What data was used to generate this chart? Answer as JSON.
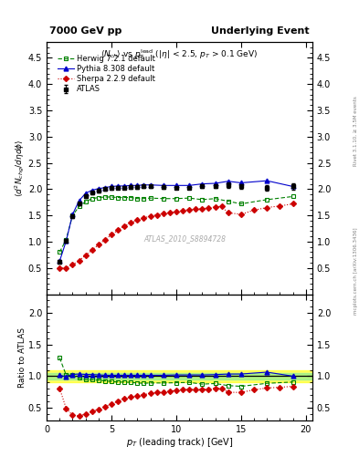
{
  "title_left": "7000 GeV pp",
  "title_right": "Underlying Event",
  "ylabel_main": "$\\langle d^2 N_{chg}/d\\eta d\\phi \\rangle$",
  "ylabel_ratio": "Ratio to ATLAS",
  "xlabel": "$p_T$ (leading track) [GeV]",
  "watermark": "ATLAS_2010_S8894728",
  "right_label": "mcplots.cern.ch [arXiv:1306.3436]",
  "rivet_label": "Rivet 3.1.10, ≥ 3.5M events",
  "atlas_x": [
    1.0,
    1.5,
    2.0,
    2.5,
    3.0,
    3.5,
    4.0,
    4.5,
    5.0,
    5.5,
    6.0,
    6.5,
    7.0,
    7.5,
    8.0,
    9.0,
    10.0,
    11.0,
    12.0,
    13.0,
    14.0,
    15.0,
    17.0,
    19.0
  ],
  "atlas_y": [
    0.62,
    1.02,
    1.48,
    1.72,
    1.87,
    1.93,
    1.97,
    2.0,
    2.02,
    2.03,
    2.03,
    2.04,
    2.04,
    2.05,
    2.05,
    2.04,
    2.03,
    2.03,
    2.06,
    2.06,
    2.08,
    2.05,
    2.03,
    2.05
  ],
  "atlas_yerr": [
    0.03,
    0.03,
    0.03,
    0.03,
    0.03,
    0.03,
    0.03,
    0.03,
    0.03,
    0.03,
    0.03,
    0.03,
    0.03,
    0.03,
    0.03,
    0.03,
    0.03,
    0.03,
    0.04,
    0.04,
    0.05,
    0.05,
    0.05,
    0.06
  ],
  "herwig_x": [
    1.0,
    1.5,
    2.0,
    2.5,
    3.0,
    3.5,
    4.0,
    4.5,
    5.0,
    5.5,
    6.0,
    6.5,
    7.0,
    7.5,
    8.0,
    9.0,
    10.0,
    11.0,
    12.0,
    13.0,
    14.0,
    15.0,
    17.0,
    19.0
  ],
  "herwig_y": [
    0.8,
    1.04,
    1.5,
    1.67,
    1.76,
    1.82,
    1.84,
    1.85,
    1.85,
    1.84,
    1.84,
    1.84,
    1.82,
    1.82,
    1.83,
    1.82,
    1.82,
    1.83,
    1.8,
    1.82,
    1.77,
    1.72,
    1.8,
    1.86
  ],
  "pythia_x": [
    1.0,
    1.5,
    2.0,
    2.5,
    3.0,
    3.5,
    4.0,
    4.5,
    5.0,
    5.5,
    6.0,
    6.5,
    7.0,
    7.5,
    8.0,
    9.0,
    10.0,
    11.0,
    12.0,
    13.0,
    14.0,
    15.0,
    17.0,
    19.0
  ],
  "pythia_y": [
    0.63,
    1.01,
    1.52,
    1.78,
    1.92,
    1.98,
    2.01,
    2.03,
    2.05,
    2.06,
    2.06,
    2.07,
    2.07,
    2.08,
    2.08,
    2.07,
    2.07,
    2.07,
    2.1,
    2.11,
    2.15,
    2.12,
    2.16,
    2.05
  ],
  "sherpa_x": [
    1.0,
    1.5,
    2.0,
    2.5,
    3.0,
    3.5,
    4.0,
    4.5,
    5.0,
    5.5,
    6.0,
    6.5,
    7.0,
    7.5,
    8.0,
    8.5,
    9.0,
    9.5,
    10.0,
    10.5,
    11.0,
    11.5,
    12.0,
    12.5,
    13.0,
    13.5,
    14.0,
    15.0,
    16.0,
    17.0,
    18.0,
    19.0
  ],
  "sherpa_y": [
    0.5,
    0.5,
    0.56,
    0.64,
    0.74,
    0.84,
    0.94,
    1.04,
    1.13,
    1.22,
    1.3,
    1.36,
    1.41,
    1.45,
    1.49,
    1.51,
    1.53,
    1.55,
    1.57,
    1.59,
    1.61,
    1.62,
    1.63,
    1.64,
    1.66,
    1.67,
    1.55,
    1.52,
    1.6,
    1.65,
    1.68,
    1.72
  ],
  "atlas_color": "#000000",
  "herwig_color": "#008000",
  "pythia_color": "#0000cc",
  "sherpa_color": "#cc0000",
  "band_yellow": [
    0.9,
    1.1
  ],
  "band_green": [
    0.95,
    1.05
  ],
  "xlim": [
    0.5,
    20.5
  ],
  "ylim_main": [
    0.0,
    4.8
  ],
  "ylim_ratio": [
    0.3,
    2.3
  ],
  "yticks_main": [
    0.5,
    1.0,
    1.5,
    2.0,
    2.5,
    3.0,
    3.5,
    4.0,
    4.5
  ],
  "yticks_ratio": [
    0.5,
    1.0,
    1.5,
    2.0
  ],
  "xticks": [
    0,
    5,
    10,
    15,
    20
  ]
}
